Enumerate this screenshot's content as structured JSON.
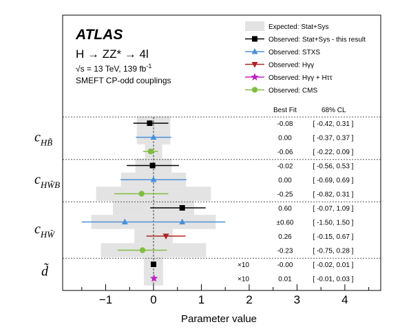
{
  "header": {
    "experiment": "ATLAS",
    "process": "H → ZZ* → 4l",
    "energy_prefix": "√s = 13 TeV, 139 fb",
    "energy_sup": "-1",
    "subtitle": "SMEFT CP-odd couplings"
  },
  "legend": {
    "items": [
      {
        "key": "expected",
        "label": "Expected: Stat+Sys",
        "color": "#e3e3e3",
        "marker": "band"
      },
      {
        "key": "observed",
        "label": "Observed: Stat+Sys - this result",
        "color": "#000000",
        "marker": "square"
      },
      {
        "key": "stxs",
        "label": "Observed: STXS",
        "color": "#4a90d9",
        "marker": "triangle-up"
      },
      {
        "key": "hgg",
        "label": "Observed: Hγγ",
        "color": "#b22222",
        "marker": "triangle-down"
      },
      {
        "key": "hggtt",
        "label": "Observed: Hγγ + Hττ",
        "color": "#c020c0",
        "marker": "star"
      },
      {
        "key": "cms",
        "label": "Observed: CMS",
        "color": "#7fbf3f",
        "marker": "circle"
      }
    ]
  },
  "table_header": {
    "best_fit": "Best Fit",
    "cl": "68% CL"
  },
  "chart_data": {
    "type": "scatter",
    "xlabel": "Parameter value",
    "xlim": [
      -1.9,
      4.75
    ],
    "xticks": [
      -1,
      0,
      1,
      2,
      3,
      4
    ],
    "xtick_labels": [
      "−1",
      "0",
      "1",
      "2",
      "3",
      "4"
    ],
    "reference_line_x": 0,
    "groups": [
      {
        "label": "c_HB̃",
        "rows": [
          {
            "series": "observed",
            "values": [
              -0.08
            ],
            "low": -0.42,
            "high": 0.31,
            "band": [
              -0.35,
              0.35
            ],
            "best_fit": "-0.08",
            "cl": "[ -0.42, 0.31 ]",
            "scale": ""
          },
          {
            "series": "stxs",
            "values": [
              0.0
            ],
            "low": -0.37,
            "high": 0.37,
            "band": [
              -0.35,
              0.35
            ],
            "best_fit": "0.00",
            "cl": "[ -0.37, 0.37 ]",
            "scale": ""
          },
          {
            "series": "cms",
            "values": [
              -0.06
            ],
            "low": -0.22,
            "high": 0.09,
            "band": [
              -0.18,
              0.18
            ],
            "best_fit": "-0.06",
            "cl": "[ -0.22, 0.09 ]",
            "scale": ""
          }
        ]
      },
      {
        "label": "c_HW̃B",
        "rows": [
          {
            "series": "observed",
            "values": [
              -0.02
            ],
            "low": -0.56,
            "high": 0.53,
            "band": [
              -0.38,
              0.38
            ],
            "best_fit": "-0.02",
            "cl": "[ -0.56, 0.53 ]",
            "scale": ""
          },
          {
            "series": "stxs",
            "values": [
              0.0
            ],
            "low": -0.69,
            "high": 0.69,
            "band": [
              -0.68,
              0.68
            ],
            "best_fit": "0.00",
            "cl": "[ -0.69, 0.69 ]",
            "scale": ""
          },
          {
            "series": "cms",
            "values": [
              -0.25
            ],
            "low": -0.82,
            "high": 0.31,
            "band": [
              -1.2,
              1.2
            ],
            "best_fit": "-0.25",
            "cl": "[ -0.82, 0.31 ]",
            "scale": ""
          }
        ]
      },
      {
        "label": "c_HW̃",
        "rows": [
          {
            "series": "observed",
            "values": [
              0.6
            ],
            "low": -0.07,
            "high": 1.09,
            "band": [
              -0.85,
              0.85
            ],
            "best_fit": "0.60",
            "cl": "[ -0.07, 1.09 ]",
            "scale": ""
          },
          {
            "series": "stxs",
            "values": [
              -0.6,
              0.6
            ],
            "low": -1.5,
            "high": 1.5,
            "band": [
              -1.3,
              1.3
            ],
            "best_fit": "±0.60",
            "cl": "[ -1.50, 1.50 ]",
            "scale": ""
          },
          {
            "series": "hgg",
            "values": [
              0.26
            ],
            "low": -0.15,
            "high": 0.67,
            "band": [
              -0.4,
              0.4
            ],
            "best_fit": "0.26",
            "cl": "[ -0.15, 0.67 ]",
            "scale": ""
          },
          {
            "series": "cms",
            "values": [
              -0.23
            ],
            "low": -0.75,
            "high": 0.28,
            "band": [
              -1.1,
              1.1
            ],
            "best_fit": "-0.23",
            "cl": "[ -0.75, 0.28 ]",
            "scale": ""
          }
        ]
      },
      {
        "label": "d̃",
        "rows": [
          {
            "series": "observed",
            "values": [
              -0.0
            ],
            "low": -0.02,
            "high": 0.01,
            "band": [
              -0.2,
              0.2
            ],
            "best_fit": "-0.00",
            "cl": "[ -0.02, 0.01 ]",
            "scale": "×10"
          },
          {
            "series": "hggtt",
            "values": [
              0.01
            ],
            "low": -0.01,
            "high": 0.03,
            "band": [
              -0.2,
              0.2
            ],
            "best_fit": "0.01",
            "cl": "[ -0.01, 0.03 ]",
            "scale": "×10"
          }
        ]
      }
    ]
  }
}
